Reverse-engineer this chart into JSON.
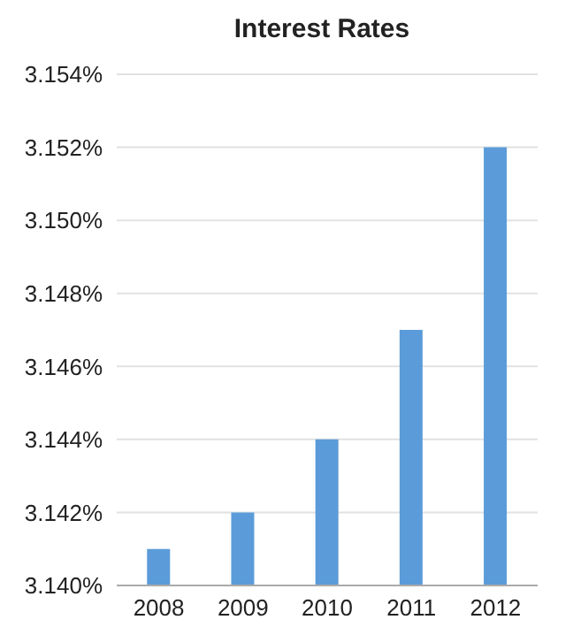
{
  "chart_data": {
    "type": "bar",
    "title": "Interest Rates",
    "categories": [
      "2008",
      "2009",
      "2010",
      "2011",
      "2012"
    ],
    "values": [
      3.141,
      3.142,
      3.144,
      3.147,
      3.152
    ],
    "color": "#5b9bd9",
    "ylim": [
      3.14,
      3.154
    ],
    "yticks": [
      {
        "value": 3.14,
        "label": "3.140%"
      },
      {
        "value": 3.142,
        "label": "3.142%"
      },
      {
        "value": 3.144,
        "label": "3.144%"
      },
      {
        "value": 3.146,
        "label": "3.146%"
      },
      {
        "value": 3.148,
        "label": "3.148%"
      },
      {
        "value": 3.15,
        "label": "3.150%"
      },
      {
        "value": 3.152,
        "label": "3.152%"
      },
      {
        "value": 3.154,
        "label": "3.154%"
      }
    ],
    "grid": "y"
  }
}
